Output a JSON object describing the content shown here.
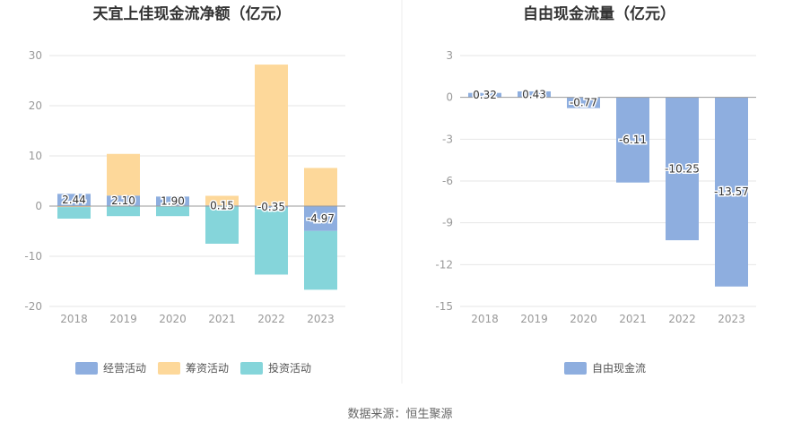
{
  "source_text": "数据来源：恒生聚源",
  "chart_data": [
    {
      "type": "bar",
      "stacked": true,
      "title": "天宜上佳现金流净额（亿元）",
      "categories": [
        "2018",
        "2019",
        "2020",
        "2021",
        "2022",
        "2023"
      ],
      "ylim": [
        -20,
        30
      ],
      "yticks": [
        -20,
        -10,
        0,
        10,
        20,
        30
      ],
      "grid": true,
      "legend_position": "bottom",
      "series": [
        {
          "name": "经营活动",
          "color": "#8eaedf",
          "values": [
            2.44,
            2.1,
            1.9,
            0.15,
            -0.35,
            -4.97
          ]
        },
        {
          "name": "筹资活动",
          "color": "#fdd89a",
          "values": [
            -0.2,
            8.3,
            -0.1,
            1.9,
            28.2,
            7.6
          ]
        },
        {
          "name": "投资活动",
          "color": "#85d5da",
          "values": [
            -2.3,
            -2.0,
            -1.9,
            -7.5,
            -13.3,
            -11.7
          ]
        }
      ],
      "data_labels": [
        "2.44",
        "2.10",
        "1.90",
        "0.15",
        "-0.35",
        "-4.97"
      ]
    },
    {
      "type": "bar",
      "title": "自由现金流量（亿元）",
      "categories": [
        "2018",
        "2019",
        "2020",
        "2021",
        "2022",
        "2023"
      ],
      "ylim": [
        -15,
        3
      ],
      "yticks": [
        -15,
        -12,
        -9,
        -6,
        -3,
        0,
        3
      ],
      "grid": true,
      "legend_position": "bottom",
      "series": [
        {
          "name": "自由现金流",
          "color": "#8eaedf",
          "values": [
            0.32,
            0.43,
            -0.77,
            -6.11,
            -10.25,
            -13.57
          ]
        }
      ],
      "data_labels": [
        "0.32",
        "0.43",
        "-0.77",
        "-6.11",
        "-10.25",
        "-13.57"
      ]
    }
  ]
}
